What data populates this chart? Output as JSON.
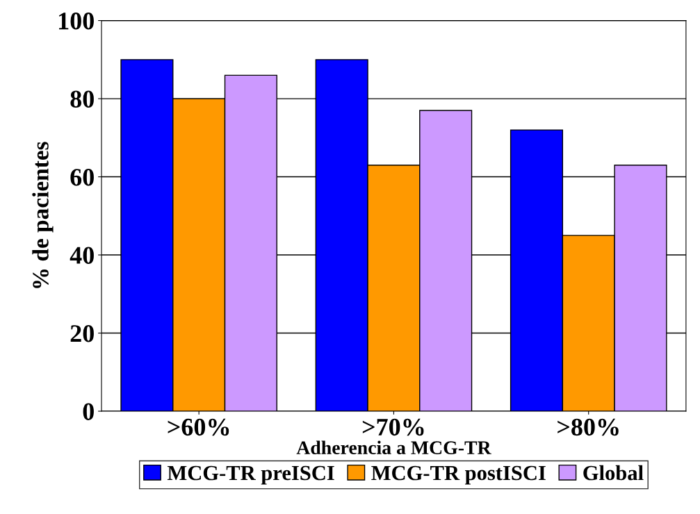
{
  "chart_data": {
    "type": "bar",
    "xlabel": "Adherencia a MCG-TR",
    "ylabel": "% de pacientes",
    "categories": [
      ">60%",
      ">70%",
      ">80%"
    ],
    "series": [
      {
        "name": "MCG-TR preISCI",
        "color": "#0000ff",
        "values": [
          90,
          90,
          72
        ]
      },
      {
        "name": "MCG-TR postISCI",
        "color": "#ff9900",
        "values": [
          80,
          63,
          45
        ]
      },
      {
        "name": "Global",
        "color": "#cc99ff",
        "values": [
          86,
          77,
          63
        ]
      }
    ],
    "ylim": [
      0,
      100
    ],
    "yticks": [
      0,
      20,
      40,
      60,
      80,
      100
    ],
    "grid": "y",
    "legend": "bottom"
  }
}
